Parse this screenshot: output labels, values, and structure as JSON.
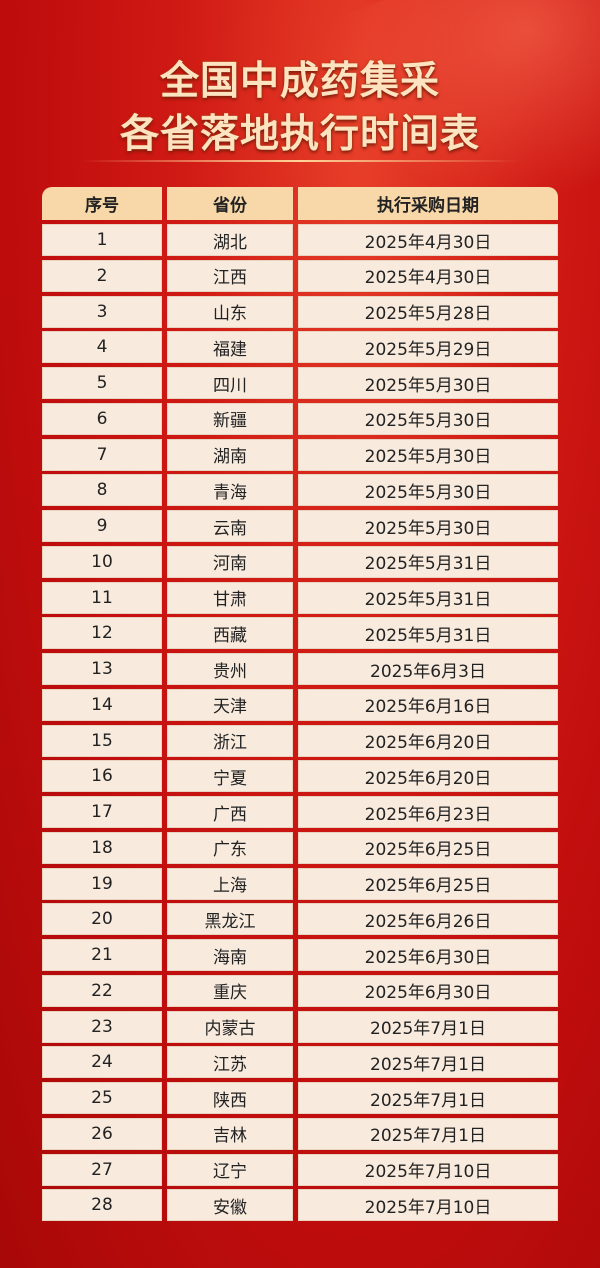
{
  "title": {
    "line1": "全国中成药集采",
    "line2": "各省落地执行时间表"
  },
  "table": {
    "headers": [
      "序号",
      "省份",
      "执行采购日期"
    ],
    "rows": [
      [
        "1",
        "湖北",
        "2025年4月30日"
      ],
      [
        "2",
        "江西",
        "2025年4月30日"
      ],
      [
        "3",
        "山东",
        "2025年5月28日"
      ],
      [
        "4",
        "福建",
        "2025年5月29日"
      ],
      [
        "5",
        "四川",
        "2025年5月30日"
      ],
      [
        "6",
        "新疆",
        "2025年5月30日"
      ],
      [
        "7",
        "湖南",
        "2025年5月30日"
      ],
      [
        "8",
        "青海",
        "2025年5月30日"
      ],
      [
        "9",
        "云南",
        "2025年5月30日"
      ],
      [
        "10",
        "河南",
        "2025年5月31日"
      ],
      [
        "11",
        "甘肃",
        "2025年5月31日"
      ],
      [
        "12",
        "西藏",
        "2025年5月31日"
      ],
      [
        "13",
        "贵州",
        "2025年6月3日"
      ],
      [
        "14",
        "天津",
        "2025年6月16日"
      ],
      [
        "15",
        "浙江",
        "2025年6月20日"
      ],
      [
        "16",
        "宁夏",
        "2025年6月20日"
      ],
      [
        "17",
        "广西",
        "2025年6月23日"
      ],
      [
        "18",
        "广东",
        "2025年6月25日"
      ],
      [
        "19",
        "上海",
        "2025年6月25日"
      ],
      [
        "20",
        "黑龙江",
        "2025年6月26日"
      ],
      [
        "21",
        "海南",
        "2025年6月30日"
      ],
      [
        "22",
        "重庆",
        "2025年6月30日"
      ],
      [
        "23",
        "内蒙古",
        "2025年7月1日"
      ],
      [
        "24",
        "江苏",
        "2025年7月1日"
      ],
      [
        "25",
        "陕西",
        "2025年7月1日"
      ],
      [
        "26",
        "吉林",
        "2025年7月1日"
      ],
      [
        "27",
        "辽宁",
        "2025年7月10日"
      ],
      [
        "28",
        "安徽",
        "2025年7月10日"
      ]
    ]
  },
  "colors": {
    "background": "#c00d0d",
    "header_bg": "#f8d7a8",
    "cell_bg": "#f8ebde",
    "title": "#fde3c0"
  }
}
